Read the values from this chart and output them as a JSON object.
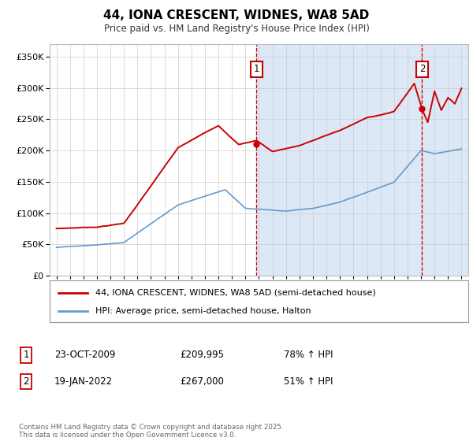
{
  "title": "44, IONA CRESCENT, WIDNES, WA8 5AD",
  "subtitle": "Price paid vs. HM Land Registry's House Price Index (HPI)",
  "ylim": [
    0,
    370000
  ],
  "yticks": [
    0,
    50000,
    100000,
    150000,
    200000,
    250000,
    300000,
    350000
  ],
  "legend_line1": "44, IONA CRESCENT, WIDNES, WA8 5AD (semi-detached house)",
  "legend_line2": "HPI: Average price, semi-detached house, Halton",
  "footnote": "Contains HM Land Registry data © Crown copyright and database right 2025.\nThis data is licensed under the Open Government Licence v3.0.",
  "bg_color": "#ffffff",
  "plot_bg": "#ffffff",
  "red_color": "#cc0000",
  "blue_color": "#6699cc",
  "shade_color": "#dce8f5",
  "t1": 2009.82,
  "t2": 2022.08,
  "marker1_price": 209995,
  "marker2_price": 267000,
  "annot1_date": "23-OCT-2009",
  "annot1_price": "£209,995",
  "annot1_hpi": "78% ↑ HPI",
  "annot2_date": "19-JAN-2022",
  "annot2_price": "£267,000",
  "annot2_hpi": "51% ↑ HPI"
}
